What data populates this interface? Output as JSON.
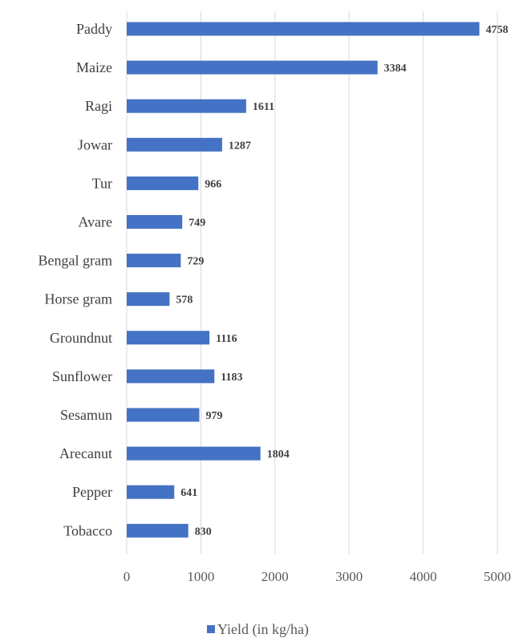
{
  "chart_data": {
    "type": "bar",
    "orientation": "horizontal",
    "categories": [
      "Paddy",
      "Maize",
      "Ragi",
      "Jowar",
      "Tur",
      "Avare",
      "Bengal gram",
      "Horse gram",
      "Groundnut",
      "Sunflower",
      "Sesamun",
      "Arecanut",
      "Pepper",
      "Tobacco"
    ],
    "series": [
      {
        "name": "Yield (in kg/ha)",
        "color": "#4472C4",
        "values": [
          4758,
          3384,
          1611,
          1287,
          966,
          749,
          729,
          578,
          1116,
          1183,
          979,
          1804,
          641,
          830
        ]
      }
    ],
    "xlim": [
      0,
      5000
    ],
    "x_ticks": [
      "0",
      "1000",
      "2000",
      "3000",
      "4000",
      "5000"
    ],
    "grid": true,
    "legend_position": "bottom",
    "data_labels": true
  }
}
